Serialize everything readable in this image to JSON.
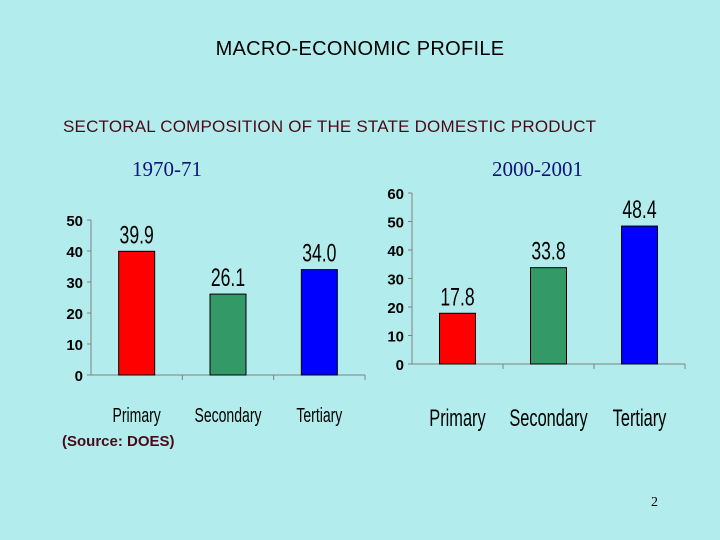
{
  "slide": {
    "title": "MACRO-ECONOMIC PROFILE",
    "subtitle": "SECTORAL COMPOSITION OF THE STATE DOMESTIC PRODUCT",
    "source": "(Source: DOES)",
    "page_number": "2"
  },
  "chart_data": [
    {
      "type": "bar",
      "title": "1970-71",
      "categories": [
        "Primary",
        "Secondary",
        "Tertiary"
      ],
      "values": [
        39.9,
        26.1,
        34.0
      ],
      "value_labels": [
        "39.9",
        "26.1",
        "34.0"
      ],
      "colors": [
        "#ff0000",
        "#339966",
        "#0000ff"
      ],
      "ylim": [
        0,
        50
      ],
      "yticks": [
        0,
        10,
        20,
        30,
        40,
        50
      ],
      "grid": false,
      "legend": "none"
    },
    {
      "type": "bar",
      "title": "2000-2001",
      "categories": [
        "Primary",
        "Secondary",
        "Tertiary"
      ],
      "values": [
        17.8,
        33.8,
        48.4
      ],
      "value_labels": [
        "17.8",
        "33.8",
        "48.4"
      ],
      "colors": [
        "#ff0000",
        "#339966",
        "#0000ff"
      ],
      "ylim": [
        0,
        60
      ],
      "yticks": [
        0,
        10,
        20,
        30,
        40,
        50,
        60
      ],
      "grid": false,
      "legend": "none"
    }
  ]
}
